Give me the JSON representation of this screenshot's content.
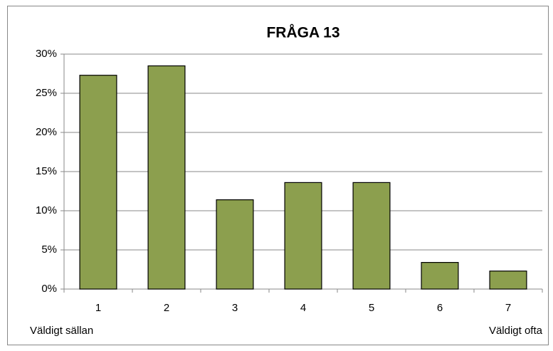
{
  "chart_data": {
    "type": "bar",
    "title": "FRÅGA 13",
    "categories": [
      "1",
      "2",
      "3",
      "4",
      "5",
      "6",
      "7"
    ],
    "values": [
      27.3,
      28.5,
      11.4,
      13.6,
      13.6,
      3.4,
      2.3
    ],
    "color": "#8c9f4e",
    "ylim": [
      0,
      30
    ],
    "yticks": [
      {
        "value": 0,
        "label": "0%"
      },
      {
        "value": 5,
        "label": "5%"
      },
      {
        "value": 10,
        "label": "10%"
      },
      {
        "value": 15,
        "label": "15%"
      },
      {
        "value": 20,
        "label": "20%"
      },
      {
        "value": 25,
        "label": "25%"
      },
      {
        "value": 30,
        "label": "30%"
      }
    ],
    "grid": true,
    "annotations": [
      "Väldigt sällan",
      "Väldigt ofta"
    ]
  }
}
